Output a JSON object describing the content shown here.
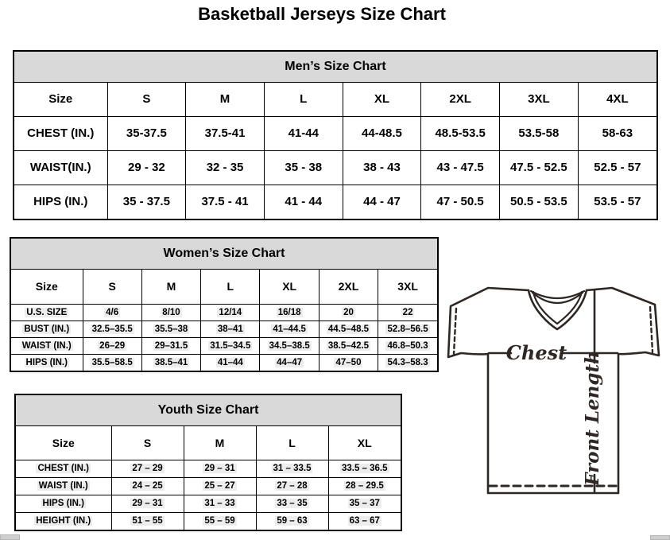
{
  "page": {
    "title": "Basketball Jerseys Size Chart"
  },
  "colors": {
    "table_header_bg": "#d9d9d9",
    "table_border": "#000000",
    "diagram_line": "#2e2724",
    "value_highlight": "#ededed",
    "scrollbar": "#cfcfcf"
  },
  "tables": {
    "men": {
      "title": "Men’s Size Chart",
      "size_label": "Size",
      "sizes": [
        "S",
        "M",
        "L",
        "XL",
        "2XL",
        "3XL",
        "4XL"
      ],
      "rows": [
        {
          "label": "CHEST (IN.)",
          "values": [
            "35-37.5",
            "37.5-41",
            "41-44",
            "44-48.5",
            "48.5-53.5",
            "53.5-58",
            "58-63"
          ]
        },
        {
          "label": "WAIST(IN.)",
          "values": [
            "29 - 32",
            "32 - 35",
            "35 - 38",
            "38 - 43",
            "43 - 47.5",
            "47.5 - 52.5",
            "52.5 - 57"
          ]
        },
        {
          "label": "HIPS (IN.)",
          "values": [
            "35 - 37.5",
            "37.5 - 41",
            "41 - 44",
            "44 - 47",
            "47 - 50.5",
            "50.5 - 53.5",
            "53.5 - 57"
          ]
        }
      ]
    },
    "women": {
      "title": "Women’s Size Chart",
      "size_label": "Size",
      "sizes": [
        "S",
        "M",
        "L",
        "XL",
        "2XL",
        "3XL"
      ],
      "rows": [
        {
          "label": "U.S. SIZE",
          "values": [
            "4/6",
            "8/10",
            "12/14",
            "16/18",
            "20",
            "22"
          ]
        },
        {
          "label": "BUST (IN.)",
          "values": [
            "32.5–35.5",
            "35.5–38",
            "38–41",
            "41–44.5",
            "44.5–48.5",
            "52.8–56.5"
          ]
        },
        {
          "label": "WAIST (IN.)",
          "values": [
            "26–29",
            "29–31.5",
            "31.5–34.5",
            "34.5–38.5",
            "38.5–42.5",
            "46.8–50.3"
          ]
        },
        {
          "label": "HIPS (IN.)",
          "values": [
            "35.5–58.5",
            "38.5–41",
            "41–44",
            "44–47",
            "47–50",
            "54.3–58.3"
          ]
        }
      ]
    },
    "youth": {
      "title": "Youth Size Chart",
      "size_label": "Size",
      "sizes": [
        "S",
        "M",
        "L",
        "XL"
      ],
      "rows": [
        {
          "label": "CHEST (IN.)",
          "values": [
            "27 – 29",
            "29 – 31",
            "31 – 33.5",
            "33.5 – 36.5"
          ]
        },
        {
          "label": "WAIST (IN.)",
          "values": [
            "24 – 25",
            "25 – 27",
            "27 – 28",
            "28 – 29.5"
          ]
        },
        {
          "label": "HIPS (IN.)",
          "values": [
            "29 – 31",
            "31 – 33",
            "33 – 35",
            "35 – 37"
          ]
        },
        {
          "label": "HEIGHT (IN.)",
          "values": [
            "51 – 55",
            "55 – 59",
            "59 – 63",
            "63 – 67"
          ]
        }
      ]
    }
  },
  "diagram": {
    "chest_label": "Chest",
    "front_length_label": "Front Length"
  }
}
